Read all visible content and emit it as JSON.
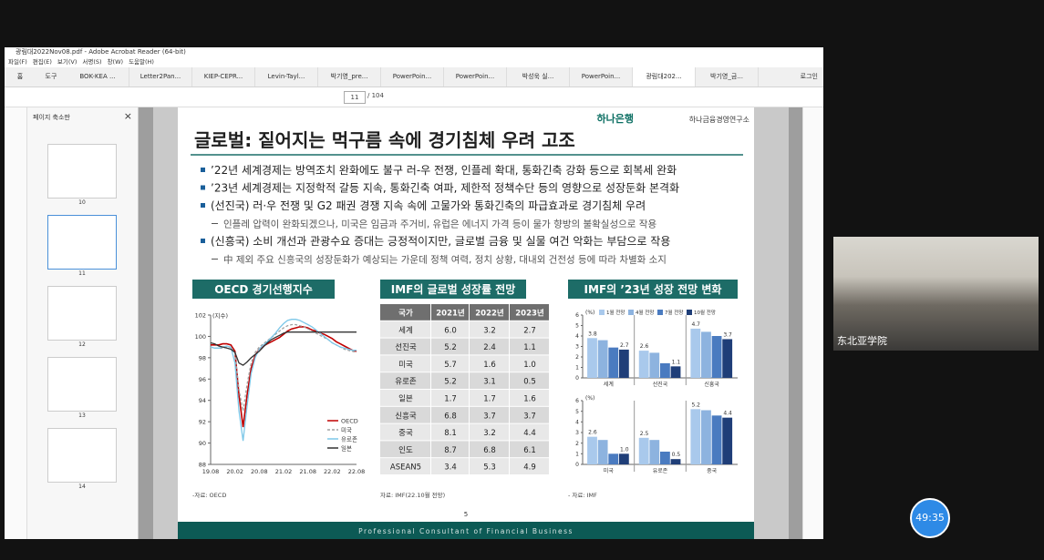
{
  "window": {
    "title": "광림대2022Nov08.pdf - Adobe Acrobat Reader (64-bit)",
    "menu": [
      "파일(F)",
      "편집(E)",
      "보기(V)",
      "서명(S)",
      "창(W)",
      "도움말(H)"
    ],
    "nav": [
      "홈",
      "도구"
    ],
    "tabs": [
      "BOK-KEA ...",
      "Letter2Pan...",
      "KIEP-CEPR...",
      "Levin-Tayl...",
      "박기영_pre...",
      "PowerPoin...",
      "PowerPoin...",
      "박성욱 실...",
      "PowerPoin...",
      "광림대202...",
      "박기영_금..."
    ],
    "login": "로그인",
    "page": "11",
    "page_total": "/ 104"
  },
  "sidebar": {
    "title": "페이지 축소판",
    "pages": [
      "10",
      "11",
      "12",
      "13",
      "14"
    ]
  },
  "slide": {
    "logo": "하나은행",
    "institute": "하나금융경영연구소",
    "title": "글로벌: 짙어지는 먹구름 속에 경기침체 우려 고조",
    "bullets": [
      {
        "text": "’22년 세계경제는 방역조치 완화에도 불구 러-우 전쟁, 인플레 확대, 통화긴축 강화 등으로 회복세 완화"
      },
      {
        "text": "’23년 세계경제는 지정학적 갈등 지속, 통화긴축 여파, 제한적 정책수단 등의 영향으로 성장둔화 본격화"
      },
      {
        "text": "(선진국) 러·우 전쟁 및 G2 패권 경쟁 지속 속에 고물가와 통화긴축의 파급효과로 경기침체 우려",
        "note": "인플레 압력이 완화되겠으나, 미국은 임금과 주거비, 유럽은 에너지 가격 등이 물가 향방의 불확실성으로 작용"
      },
      {
        "text": "(신흥국) 소비 개선과 관광수요 증대는 긍정적이지만, 글로벌 금융 및 실물 여건 악화는 부담으로 작용",
        "note": "中 제외 주요 신흥국의 성장둔화가 예상되는 가운데 정책 여력, 정치 상황, 대내외 건전성 등에 따라 차별화 소지"
      }
    ],
    "panels": [
      {
        "title": "OECD 경기선행지수",
        "source": "-자료: OECD"
      },
      {
        "title": "IMF의 글로벌 성장률 전망",
        "source": "자료: IMF(22.10월 전망)"
      },
      {
        "title": "IMF의 ’23년 성장 전망 변화",
        "source": "- 자료: IMF"
      }
    ],
    "table": {
      "header": [
        "국가",
        "2021년",
        "2022년",
        "2023년"
      ],
      "rows": [
        [
          "세계",
          "6.0",
          "3.2",
          "2.7"
        ],
        [
          "선진국",
          "5.2",
          "2.4",
          "1.1"
        ],
        [
          "미국",
          "5.7",
          "1.6",
          "1.0"
        ],
        [
          "유로존",
          "5.2",
          "3.1",
          "0.5"
        ],
        [
          "일본",
          "1.7",
          "1.7",
          "1.6"
        ],
        [
          "신흥국",
          "6.8",
          "3.7",
          "3.7"
        ],
        [
          "중국",
          "8.1",
          "3.2",
          "4.4"
        ],
        [
          "인도",
          "8.7",
          "6.8",
          "6.1"
        ],
        [
          "ASEAN5",
          "3.4",
          "5.3",
          "4.9"
        ]
      ]
    },
    "page_number": "5",
    "footer": "Professional Consultant of Financial Business"
  },
  "chart_data": [
    {
      "type": "line",
      "ylabel": "(지수)",
      "categories": [
        "19.08",
        null,
        null,
        null,
        null,
        null,
        "20.02",
        null,
        null,
        null,
        null,
        null,
        "20.08",
        null,
        null,
        null,
        null,
        null,
        "21.02",
        null,
        null,
        null,
        null,
        null,
        "21.08",
        null,
        null,
        null,
        null,
        null,
        "22.02",
        null,
        null,
        null,
        null,
        null,
        "22.08"
      ],
      "ylim": [
        88,
        102
      ],
      "yticks": [
        88,
        90,
        92,
        94,
        96,
        98,
        100,
        102
      ],
      "legend": "lower-right",
      "series": [
        {
          "name": "OECD",
          "color": "#c00000",
          "values": [
            99.2,
            99.2,
            99.2,
            99.3,
            99.3,
            99.2,
            98.6,
            94.5,
            91.5,
            94.5,
            97.0,
            98.2,
            98.8,
            99.1,
            99.3,
            99.5,
            99.7,
            99.9,
            100.2,
            100.5,
            100.7,
            100.8,
            100.9,
            100.9,
            100.8,
            100.6,
            100.5,
            100.3,
            100.2,
            100.0,
            99.8,
            99.5,
            99.3,
            99.1,
            98.9,
            98.7,
            98.6
          ]
        },
        {
          "name": "미국",
          "color": "#a0a0a0",
          "dash": true,
          "values": [
            99.0,
            98.9,
            98.9,
            98.9,
            99.0,
            99.0,
            98.4,
            95.0,
            93.0,
            95.5,
            97.5,
            98.5,
            99.0,
            99.3,
            99.6,
            99.9,
            100.2,
            100.5,
            100.8,
            101.0,
            101.1,
            101.1,
            101.0,
            100.9,
            100.7,
            100.5,
            100.3,
            100.1,
            99.9,
            99.7,
            99.4,
            99.2,
            99.0,
            98.8,
            98.7,
            98.6,
            98.5
          ]
        },
        {
          "name": "유로존",
          "color": "#7cc7e8",
          "values": [
            99.0,
            98.9,
            98.9,
            99.0,
            99.1,
            99.0,
            97.5,
            93.0,
            90.2,
            93.5,
            96.5,
            98.0,
            98.8,
            99.2,
            99.5,
            99.9,
            100.3,
            100.8,
            101.2,
            101.5,
            101.6,
            101.6,
            101.5,
            101.3,
            101.1,
            100.9,
            100.6,
            100.3,
            100.0,
            99.7,
            99.4,
            99.2,
            99.0,
            98.9,
            98.8,
            98.7,
            98.7
          ]
        },
        {
          "name": "일본",
          "color": "#333333",
          "values": [
            99.4,
            99.3,
            99.1,
            99.0,
            98.9,
            98.8,
            98.5,
            97.5,
            97.3,
            97.6,
            98.0,
            98.3,
            98.6,
            99.0,
            99.4,
            99.7,
            99.9,
            100.1,
            100.3,
            100.4,
            100.4,
            100.4,
            100.4,
            100.4,
            100.4,
            100.4,
            100.4,
            100.4,
            100.4,
            100.4,
            100.4,
            100.4,
            100.4,
            100.4,
            100.4,
            100.4,
            100.4
          ]
        }
      ]
    },
    {
      "type": "bar",
      "ylabel": "(%)",
      "categories": [
        "세계",
        "선진국",
        "신흥국"
      ],
      "ylim": [
        0,
        6
      ],
      "yticks": [
        0,
        1,
        2,
        3,
        4,
        5,
        6
      ],
      "legend": "top",
      "series": [
        {
          "name": "1월 전망",
          "color": "#a9c9ec",
          "values": [
            3.8,
            2.6,
            4.7
          ],
          "value_labels": [
            "3.8",
            "2.6",
            "4.7"
          ]
        },
        {
          "name": "4월 전망",
          "color": "#8db3df",
          "values": [
            3.6,
            2.4,
            4.4
          ],
          "value_labels": [
            null,
            null,
            null
          ]
        },
        {
          "name": "7월 전망",
          "color": "#4a7bc0",
          "values": [
            2.9,
            1.4,
            4.0
          ],
          "value_labels": [
            null,
            null,
            null
          ]
        },
        {
          "name": "10월 전망",
          "color": "#1f3e78",
          "values": [
            2.7,
            1.1,
            3.7
          ],
          "value_labels": [
            "2.7",
            "1.1",
            "3.7"
          ]
        }
      ]
    },
    {
      "type": "bar",
      "ylabel": "(%)",
      "categories": [
        "미국",
        "유로존",
        "중국"
      ],
      "ylim": [
        0,
        6
      ],
      "yticks": [
        0,
        1,
        2,
        3,
        4,
        5,
        6
      ],
      "series": [
        {
          "color": "#a9c9ec",
          "values": [
            2.6,
            2.5,
            5.2
          ],
          "value_labels": [
            "2.6",
            "2.5",
            "5.2"
          ]
        },
        {
          "color": "#8db3df",
          "values": [
            2.3,
            2.3,
            5.1
          ],
          "value_labels": [
            null,
            null,
            null
          ]
        },
        {
          "color": "#4a7bc0",
          "values": [
            1.0,
            1.2,
            4.6
          ],
          "value_labels": [
            null,
            null,
            null
          ]
        },
        {
          "color": "#1f3e78",
          "values": [
            1.0,
            0.5,
            4.4
          ],
          "value_labels": [
            "1.0",
            "0.5",
            "4.4"
          ]
        }
      ]
    }
  ],
  "video": {
    "label": "东北亚学院",
    "timer": "49:35"
  }
}
